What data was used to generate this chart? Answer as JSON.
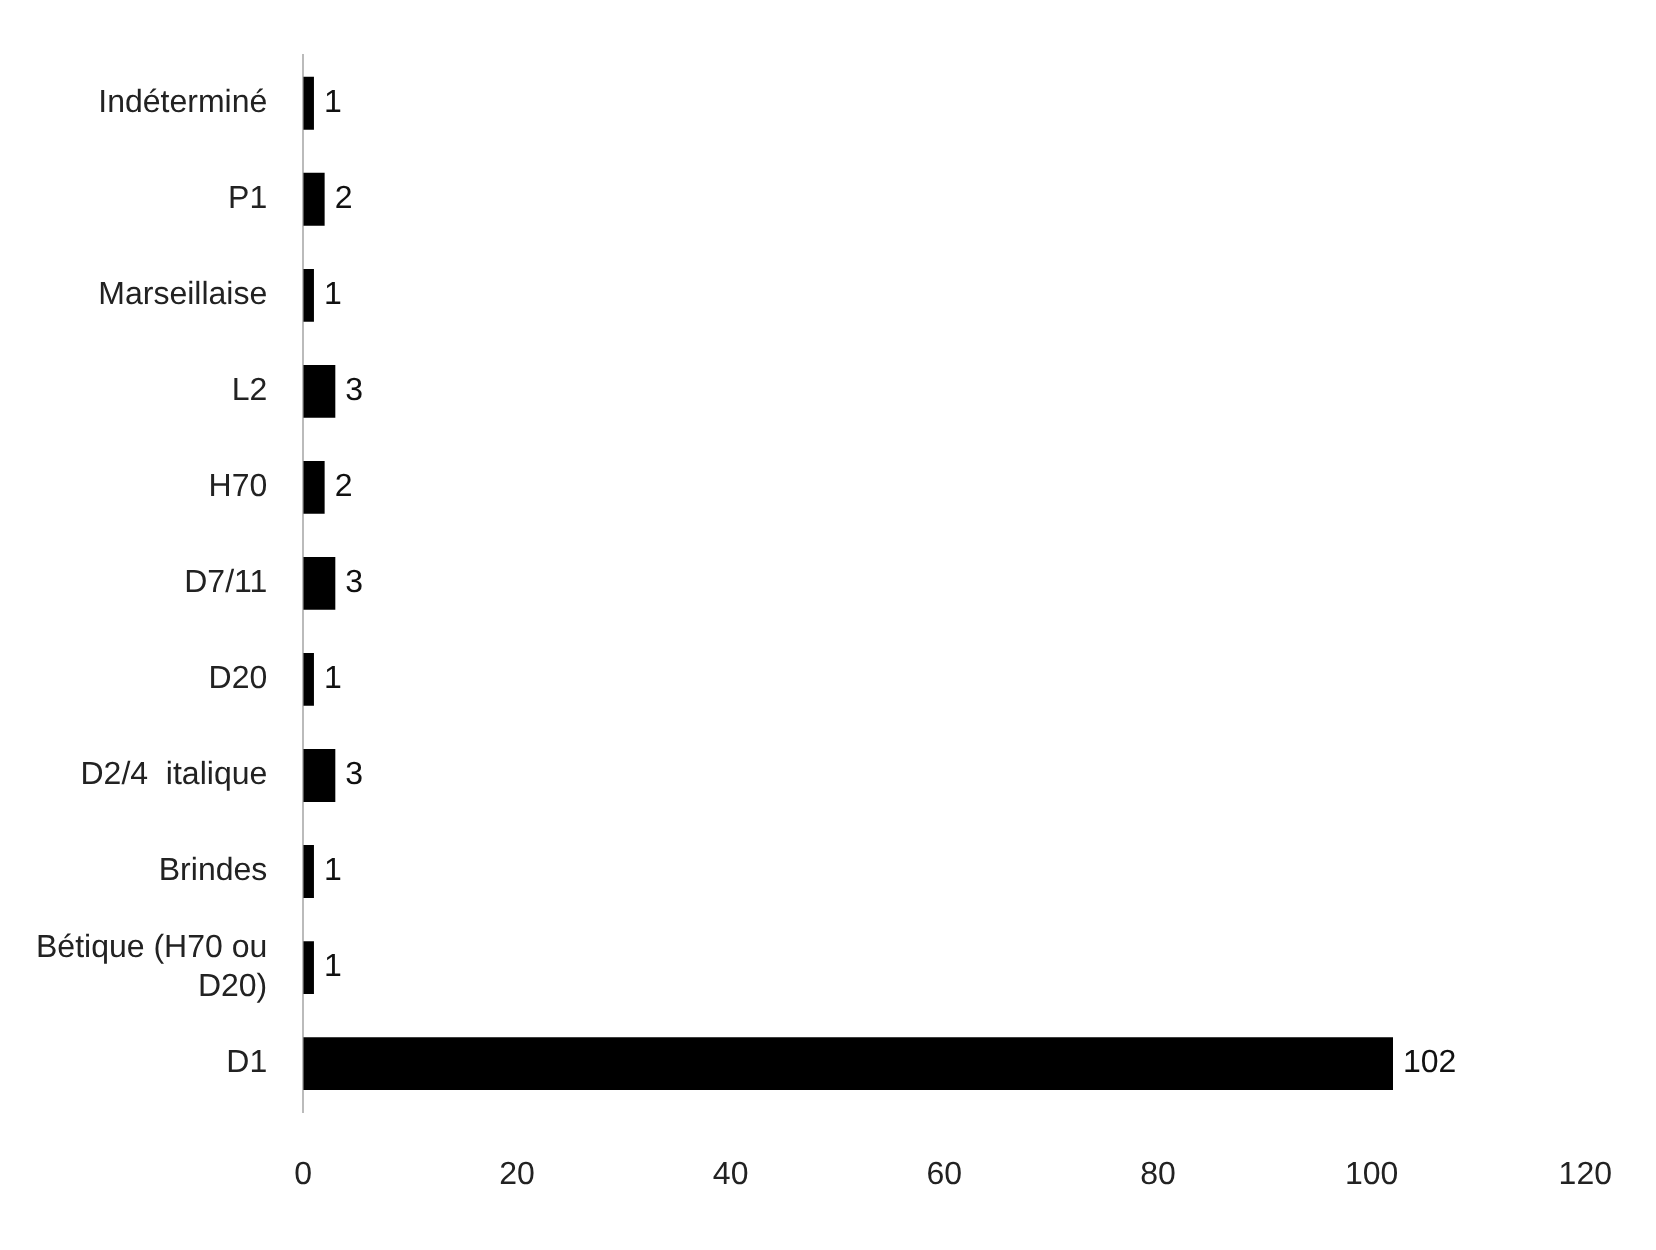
{
  "chart_data": {
    "type": "bar",
    "orientation": "horizontal",
    "categories": [
      "Indéterminé",
      "P1",
      "Marseillaise",
      "L2",
      "H70",
      "D7/11",
      "D20",
      "D2/4  italique",
      "Brindes",
      "Bétique (H70 ou D20)",
      "D1"
    ],
    "values": [
      1,
      2,
      1,
      3,
      2,
      3,
      1,
      3,
      1,
      1,
      102
    ],
    "color": "#000000",
    "xlim": [
      0,
      120
    ],
    "xticks": [
      0,
      20,
      40,
      60,
      80,
      100,
      120
    ],
    "data_labels": true,
    "grid": false,
    "legend": false
  }
}
